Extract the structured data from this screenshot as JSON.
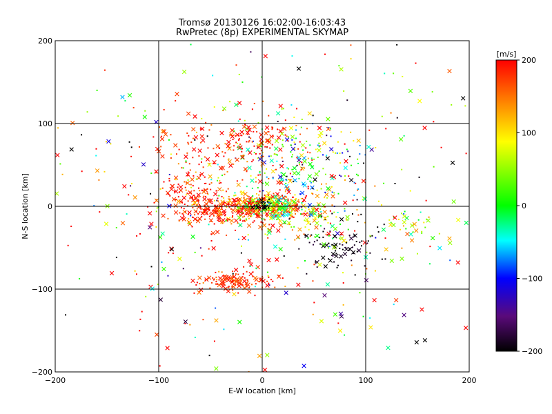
{
  "chart_data": {
    "type": "scatter",
    "title": "Tromsø 20130126 16:02:00-16:03:43",
    "subtitle": "RwPretec (8p) EXPERIMENTAL SKYMAP",
    "xlabel": "E-W location [km]",
    "ylabel": "N-S location [km]",
    "xlim": [
      -200,
      200
    ],
    "ylim": [
      -200,
      200
    ],
    "xticks": [
      -200,
      -100,
      0,
      100,
      200
    ],
    "yticks": [
      -200,
      -100,
      0,
      100,
      200
    ],
    "xtick_labels": [
      "−200",
      "−100",
      "0",
      "100",
      "200"
    ],
    "ytick_labels": [
      "−200",
      "−100",
      "0",
      "100",
      "200"
    ],
    "grid": true,
    "colorbar": {
      "label": "[m/s]",
      "range": [
        -200,
        200
      ],
      "ticks": [
        200,
        100,
        0,
        -100,
        -200
      ],
      "tick_labels": [
        "200",
        "100",
        "0",
        "−100",
        "−200"
      ],
      "colormap": [
        "#000000",
        "#5a0a7a",
        "#0000ff",
        "#00ffff",
        "#00ff00",
        "#ffff00",
        "#ff8000",
        "#ff0000"
      ]
    },
    "markers": {
      "cross": "x — larger meteor echoes",
      "dot": "small dots — smaller echoes"
    },
    "clusters": [
      {
        "x": 0,
        "y": 0,
        "sx": 30,
        "sy": 8,
        "vel": 160,
        "vsd": 50,
        "n": 260
      },
      {
        "x": -30,
        "y": -8,
        "sx": 25,
        "sy": 8,
        "vel": 190,
        "vsd": 20,
        "n": 180
      },
      {
        "x": 10,
        "y": 0,
        "sx": 15,
        "sy": 6,
        "vel": 20,
        "vsd": 50,
        "n": 120
      },
      {
        "x": 0,
        "y": 2,
        "sx": 6,
        "sy": 3,
        "vel": -200,
        "vsd": 10,
        "n": 25
      },
      {
        "x": 30,
        "y": 50,
        "sx": 35,
        "sy": 28,
        "vel": 30,
        "vsd": 110,
        "n": 260
      },
      {
        "x": 75,
        "y": -45,
        "sx": 18,
        "sy": 18,
        "vel": -195,
        "vsd": 15,
        "n": 90
      },
      {
        "x": -25,
        "y": -90,
        "sx": 18,
        "sy": 6,
        "vel": 185,
        "vsd": 20,
        "n": 120
      },
      {
        "x": -60,
        "y": 65,
        "sx": 25,
        "sy": 30,
        "vel": 185,
        "vsd": 25,
        "n": 90
      },
      {
        "x": -10,
        "y": 80,
        "sx": 18,
        "sy": 12,
        "vel": 190,
        "vsd": 20,
        "n": 70
      },
      {
        "x": -70,
        "y": 15,
        "sx": 18,
        "sy": 10,
        "vel": 180,
        "vsd": 30,
        "n": 80
      },
      {
        "x": 50,
        "y": -15,
        "sx": 40,
        "sy": 15,
        "vel": 90,
        "vsd": 80,
        "n": 90
      },
      {
        "x": 140,
        "y": -25,
        "sx": 25,
        "sy": 10,
        "vel": 60,
        "vsd": 60,
        "n": 35
      },
      {
        "x": 0,
        "y": 0,
        "sx": 110,
        "sy": 110,
        "vel": 80,
        "vsd": 160,
        "n": 450
      }
    ]
  }
}
